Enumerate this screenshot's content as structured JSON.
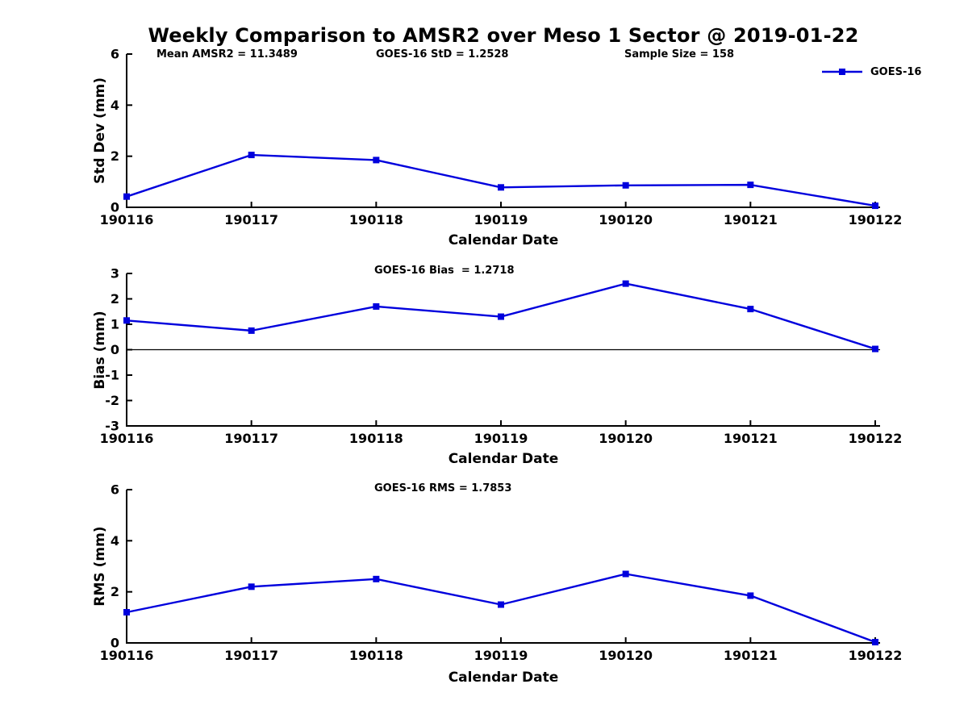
{
  "header": {
    "title": "Weekly Comparison to AMSR2 over Meso 1 Sector @ 2019-01-22",
    "annotations": [
      "Mean AMSR2 = 11.3489",
      "GOES-16 StD = 1.2528",
      "Sample Size = 158"
    ]
  },
  "legend": {
    "label": "GOES-16",
    "position": "top-right"
  },
  "colors": {
    "line": "#0000DD",
    "axis": "#000000",
    "text": "#000000",
    "background": "#FFFFFF"
  },
  "chart_data": [
    {
      "type": "line",
      "id": "stddev",
      "title": "",
      "categories": [
        "190116",
        "190117",
        "190118",
        "190119",
        "190120",
        "190121",
        "190122"
      ],
      "series": [
        {
          "name": "GOES-16",
          "values": [
            0.42,
            2.05,
            1.85,
            0.78,
            0.86,
            0.88,
            0.06
          ]
        }
      ],
      "xlabel": "Calendar Date",
      "ylabel": "Std Dev (mm)",
      "ylim": [
        0,
        6
      ],
      "yticks": [
        0,
        2,
        4,
        6
      ],
      "zero_line": false,
      "grid": false,
      "marker": "square"
    },
    {
      "type": "line",
      "id": "bias",
      "title": "GOES-16 Bias  = 1.2718",
      "categories": [
        "190116",
        "190117",
        "190118",
        "190119",
        "190120",
        "190121",
        "190122"
      ],
      "series": [
        {
          "name": "GOES-16",
          "values": [
            1.15,
            0.75,
            1.7,
            1.3,
            2.6,
            1.6,
            0.03
          ]
        }
      ],
      "xlabel": "Calendar Date",
      "ylabel": "Bias (mm)",
      "ylim": [
        -3,
        3
      ],
      "yticks": [
        -3,
        -2,
        -1,
        0,
        1,
        2,
        3
      ],
      "zero_line": true,
      "grid": false,
      "marker": "square"
    },
    {
      "type": "line",
      "id": "rms",
      "title": "GOES-16 RMS = 1.7853",
      "categories": [
        "190116",
        "190117",
        "190118",
        "190119",
        "190120",
        "190121",
        "190122"
      ],
      "series": [
        {
          "name": "GOES-16",
          "values": [
            1.2,
            2.2,
            2.5,
            1.5,
            2.7,
            1.85,
            0.03
          ]
        }
      ],
      "xlabel": "Calendar Date",
      "ylabel": "RMS (mm)",
      "ylim": [
        0,
        6
      ],
      "yticks": [
        0,
        2,
        4,
        6
      ],
      "zero_line": false,
      "grid": false,
      "marker": "square"
    }
  ]
}
